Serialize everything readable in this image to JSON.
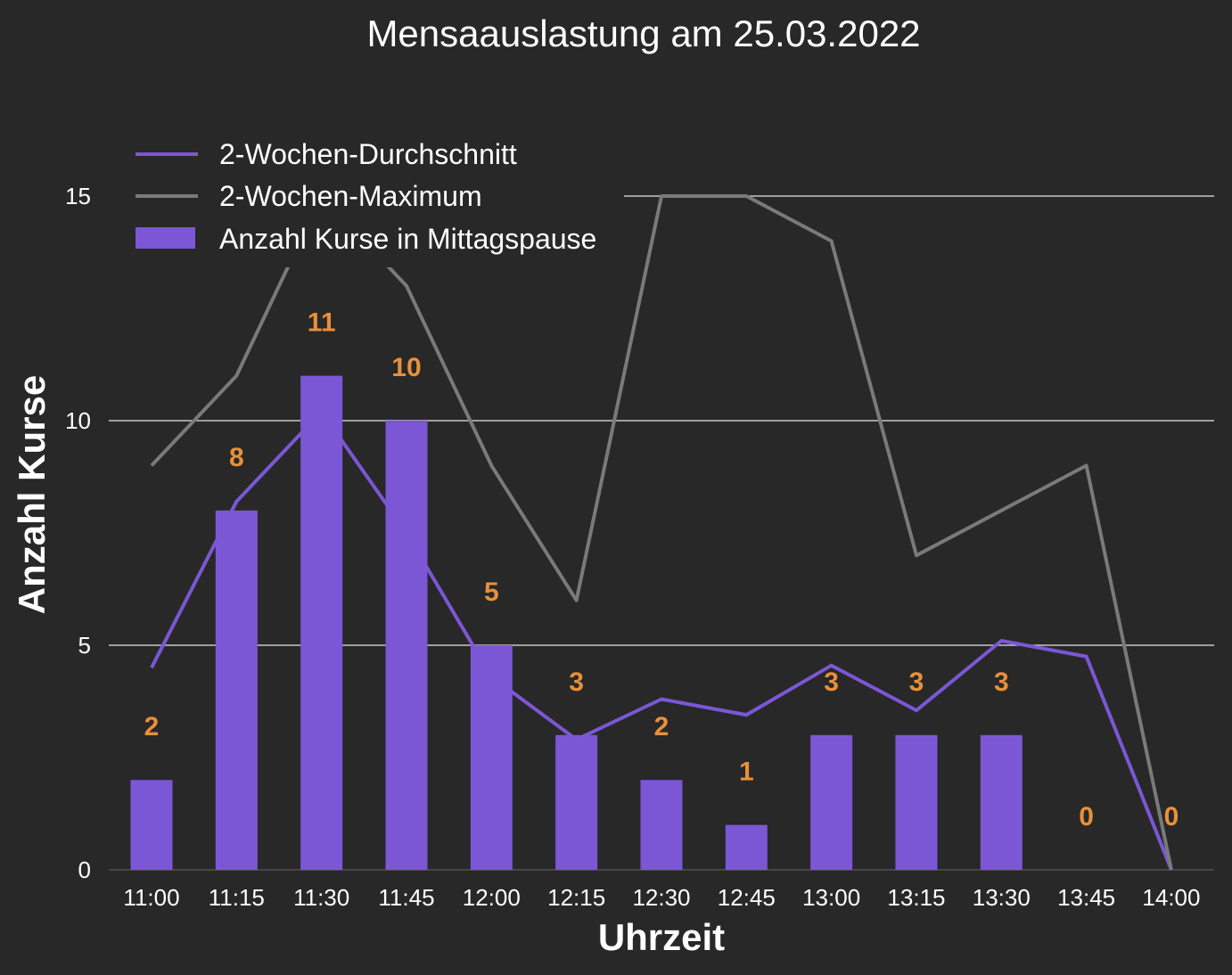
{
  "chart_data": {
    "type": "bar",
    "title": "Mensaauslastung am 25.03.2022",
    "xlabel": "Uhrzeit",
    "ylabel": "Anzahl Kurse",
    "ylim": [
      0,
      15
    ],
    "yticks": [
      "0",
      "5",
      "10",
      "15"
    ],
    "grid": true,
    "legend_position": "top-left",
    "categories": [
      "11:00",
      "11:15",
      "11:30",
      "11:45",
      "12:00",
      "12:15",
      "12:30",
      "12:45",
      "13:00",
      "13:15",
      "13:30",
      "13:45",
      "14:00"
    ],
    "bars": {
      "name": "Anzahl Kurse in Mittagspause",
      "values": [
        2,
        8,
        11,
        10,
        5,
        3,
        2,
        1,
        3,
        3,
        3,
        0,
        0
      ],
      "labels": [
        "2",
        "8",
        "11",
        "10",
        "5",
        "3",
        "2",
        "1",
        "3",
        "3",
        "3",
        "0",
        "0"
      ],
      "color": "#7b57d6",
      "label_color": "#e8903a"
    },
    "lines": [
      {
        "name": "2-Wochen-Durchschnitt",
        "values": [
          4.5,
          8.2,
          10.2,
          7.5,
          4.3,
          2.9,
          3.8,
          3.45,
          4.55,
          3.55,
          5.1,
          4.75,
          0
        ],
        "color": "#7b57d6"
      },
      {
        "name": "2-Wochen-Maximum",
        "values": [
          9,
          11,
          15,
          13,
          9,
          6,
          15,
          15,
          14,
          7,
          8,
          9,
          0
        ],
        "color": "#7a7a7a"
      }
    ],
    "background": "#282828"
  }
}
